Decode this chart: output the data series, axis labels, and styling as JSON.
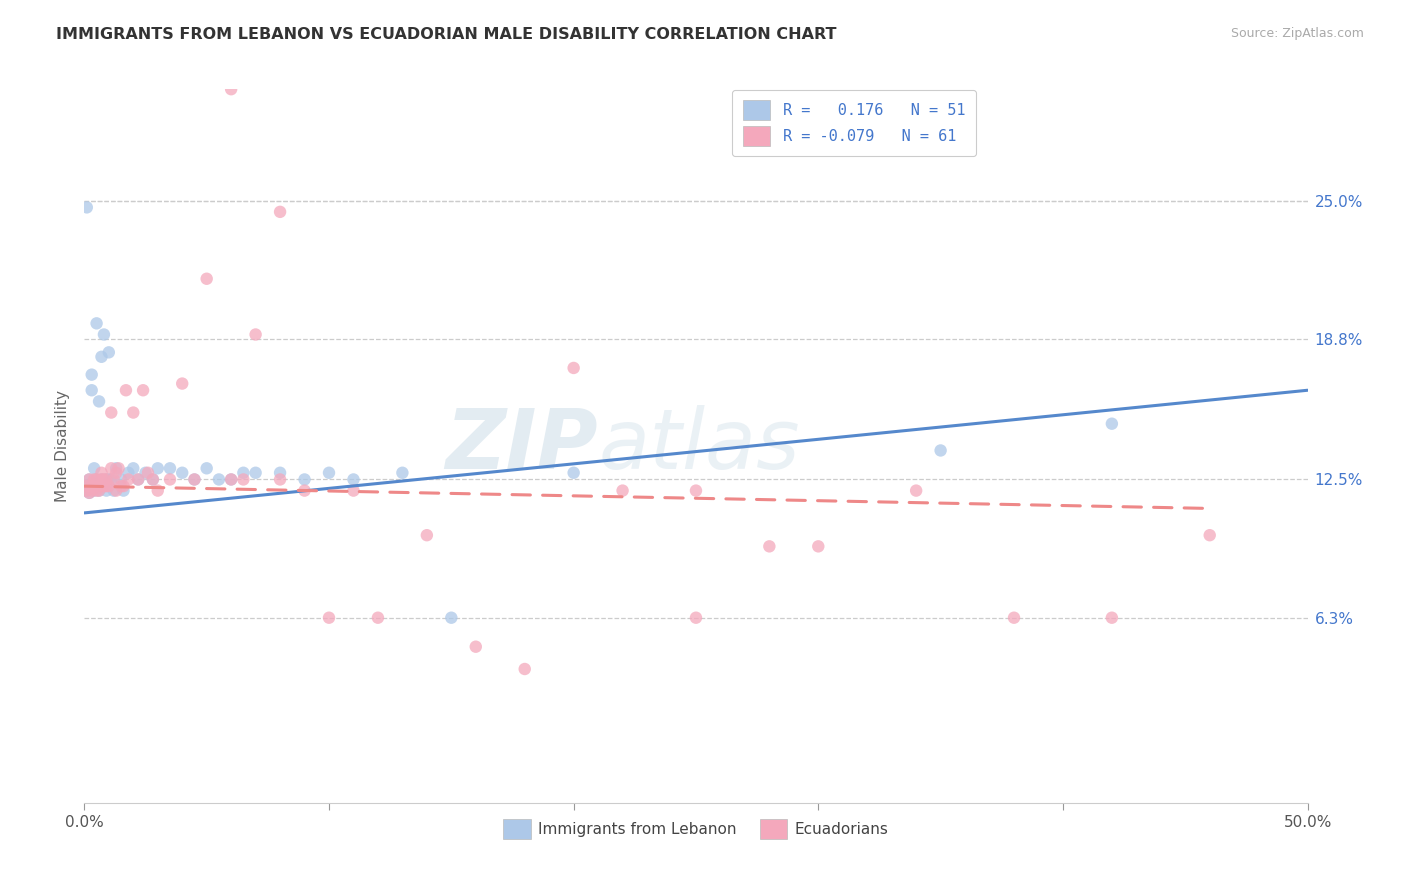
{
  "title": "IMMIGRANTS FROM LEBANON VS ECUADORIAN MALE DISABILITY CORRELATION CHART",
  "source": "Source: ZipAtlas.com",
  "ylabel": "Male Disability",
  "ytick_labels": [
    "25.0%",
    "18.8%",
    "12.5%",
    "6.3%"
  ],
  "ytick_values": [
    0.25,
    0.188,
    0.125,
    0.063
  ],
  "xleg1": "Immigrants from Lebanon",
  "xleg2": "Ecuadorians",
  "color_blue": "#adc8e8",
  "color_pink": "#f4a8bc",
  "line_blue": "#5588cc",
  "line_pink": "#ee8888",
  "blue_scatter_x": [
    0.001,
    0.001,
    0.002,
    0.002,
    0.003,
    0.003,
    0.004,
    0.004,
    0.005,
    0.005,
    0.005,
    0.006,
    0.006,
    0.007,
    0.007,
    0.007,
    0.008,
    0.008,
    0.009,
    0.009,
    0.01,
    0.01,
    0.011,
    0.012,
    0.013,
    0.015,
    0.016,
    0.018,
    0.02,
    0.022,
    0.025,
    0.028,
    0.03,
    0.035,
    0.04,
    0.045,
    0.05,
    0.055,
    0.06,
    0.065,
    0.07,
    0.08,
    0.09,
    0.1,
    0.11,
    0.13,
    0.15,
    0.2,
    0.35,
    0.42,
    0.001
  ],
  "blue_scatter_y": [
    0.122,
    0.12,
    0.125,
    0.119,
    0.165,
    0.172,
    0.12,
    0.13,
    0.121,
    0.125,
    0.195,
    0.12,
    0.16,
    0.122,
    0.125,
    0.18,
    0.122,
    0.19,
    0.12,
    0.125,
    0.125,
    0.182,
    0.125,
    0.12,
    0.13,
    0.125,
    0.12,
    0.128,
    0.13,
    0.125,
    0.128,
    0.125,
    0.13,
    0.13,
    0.128,
    0.125,
    0.13,
    0.125,
    0.125,
    0.128,
    0.128,
    0.128,
    0.125,
    0.128,
    0.125,
    0.128,
    0.063,
    0.128,
    0.138,
    0.15,
    0.247
  ],
  "pink_scatter_x": [
    0.001,
    0.001,
    0.002,
    0.002,
    0.003,
    0.003,
    0.004,
    0.005,
    0.005,
    0.006,
    0.006,
    0.007,
    0.007,
    0.008,
    0.008,
    0.009,
    0.009,
    0.01,
    0.011,
    0.011,
    0.012,
    0.013,
    0.013,
    0.014,
    0.015,
    0.016,
    0.017,
    0.018,
    0.02,
    0.022,
    0.024,
    0.026,
    0.028,
    0.03,
    0.035,
    0.04,
    0.045,
    0.05,
    0.06,
    0.065,
    0.07,
    0.08,
    0.09,
    0.1,
    0.11,
    0.12,
    0.14,
    0.16,
    0.18,
    0.22,
    0.25,
    0.28,
    0.3,
    0.34,
    0.38,
    0.42,
    0.46,
    0.2,
    0.25,
    0.06,
    0.08
  ],
  "pink_scatter_y": [
    0.122,
    0.12,
    0.125,
    0.119,
    0.122,
    0.12,
    0.125,
    0.125,
    0.12,
    0.122,
    0.12,
    0.125,
    0.128,
    0.122,
    0.125,
    0.122,
    0.125,
    0.122,
    0.13,
    0.155,
    0.125,
    0.12,
    0.128,
    0.13,
    0.122,
    0.122,
    0.165,
    0.125,
    0.155,
    0.125,
    0.165,
    0.128,
    0.125,
    0.12,
    0.125,
    0.168,
    0.125,
    0.215,
    0.125,
    0.125,
    0.19,
    0.125,
    0.12,
    0.063,
    0.12,
    0.063,
    0.1,
    0.05,
    0.04,
    0.12,
    0.12,
    0.095,
    0.095,
    0.12,
    0.063,
    0.063,
    0.1,
    0.175,
    0.063,
    0.3,
    0.245
  ],
  "xlim": [
    0.0,
    0.5
  ],
  "ylim": [
    -0.02,
    0.3
  ],
  "blue_line_x": [
    0.0,
    0.5
  ],
  "blue_line_y": [
    0.11,
    0.165
  ],
  "pink_line_x": [
    0.0,
    0.46
  ],
  "pink_line_y": [
    0.122,
    0.112
  ],
  "watermark_text": "ZIP",
  "watermark_text2": "atlas",
  "background_color": "#ffffff",
  "grid_color": "#cccccc",
  "title_color": "#333333",
  "source_color": "#aaaaaa",
  "ylabel_color": "#666666",
  "rvalue_color": "#4477cc",
  "nvalue_color": "#4477cc"
}
